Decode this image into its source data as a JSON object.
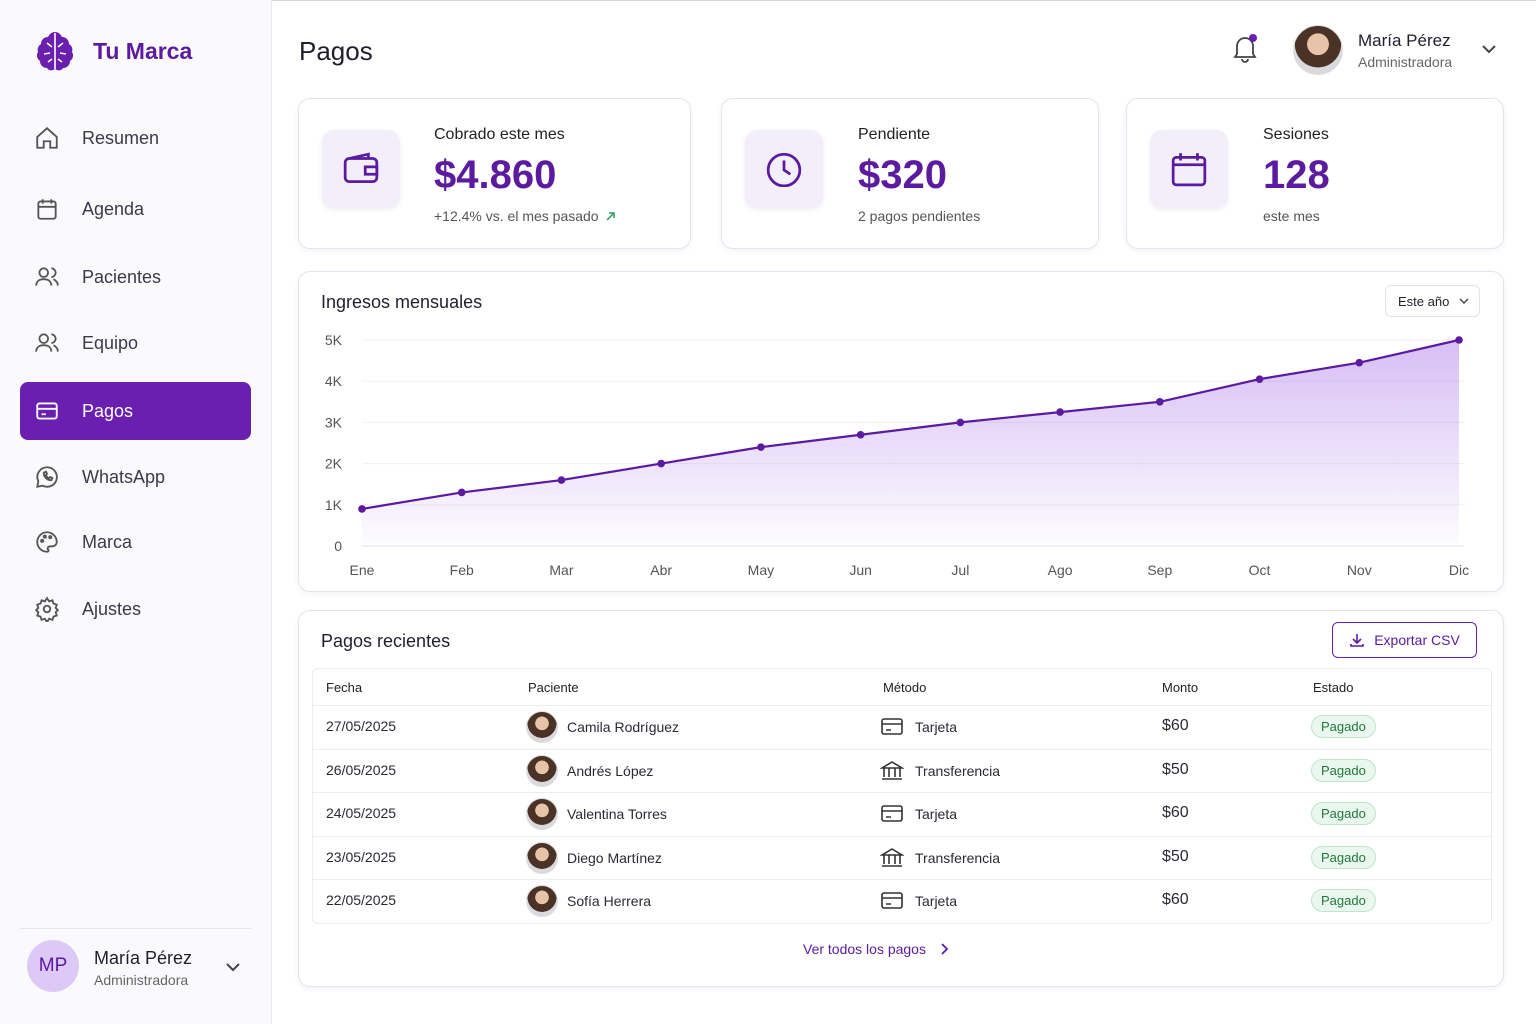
{
  "brand": "Tu Marca",
  "nav": [
    "Resumen",
    "Agenda",
    "Pacientes",
    "Equipo",
    "Pagos",
    "WhatsApp",
    "Marca",
    "Ajustes"
  ],
  "sidebar_user": {
    "initials": "MP",
    "name": "María Pérez",
    "role": "Administradora"
  },
  "header": {
    "title": "Pagos",
    "user_name": "María Pérez",
    "user_role": "Administradora"
  },
  "cards": [
    {
      "label": "Cobrado este mes",
      "value": "$4.860",
      "note": "+12.4% vs. el mes pasado"
    },
    {
      "label": "Pendiente",
      "value": "$320",
      "note": "2 pagos pendientes"
    },
    {
      "label": "Sesiones",
      "value": "128",
      "note": "este mes"
    }
  ],
  "chart_data": {
    "type": "area",
    "title": "Ingresos mensuales",
    "filter": "Este año",
    "categories": [
      "Ene",
      "Feb",
      "Mar",
      "Abr",
      "May",
      "Jun",
      "Jul",
      "Ago",
      "Sep",
      "Oct",
      "Nov",
      "Dic"
    ],
    "values": [
      900,
      1300,
      1600,
      2000,
      2400,
      2700,
      3000,
      3250,
      3500,
      4050,
      4450,
      5000
    ],
    "color": "#5b1aa0",
    "ylim": [
      0,
      5000
    ],
    "yticks": [
      0,
      {
        "value": 1000,
        "label": "1K"
      },
      {
        "value": 2000,
        "label": "2K"
      },
      {
        "value": 3000,
        "label": "3K"
      },
      {
        "value": 4000,
        "label": "4K"
      },
      {
        "value": 5000,
        "label": "5K"
      }
    ],
    "grid": true
  },
  "table": {
    "title": "Pagos recientes",
    "export": "Exportar CSV",
    "columns": [
      "Fecha",
      "Paciente",
      "Método",
      "Monto",
      "Estado"
    ],
    "rows": [
      [
        "27/05/2025",
        "Camila Rodríguez",
        "Tarjeta",
        "$60",
        "Pagado"
      ],
      [
        "26/05/2025",
        "Andrés López",
        "Transferencia",
        "$50",
        "Pagado"
      ],
      [
        "24/05/2025",
        "Valentina Torres",
        "Tarjeta",
        "$60",
        "Pagado"
      ],
      [
        "23/05/2025",
        "Diego Martínez",
        "Transferencia",
        "$50",
        "Pagado"
      ],
      [
        "22/05/2025",
        "Sofía Herrera",
        "Tarjeta",
        "$60",
        "Pagado"
      ]
    ],
    "footer": "Ver todos los pagos"
  }
}
